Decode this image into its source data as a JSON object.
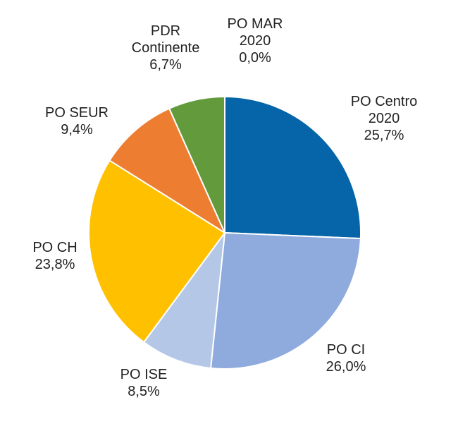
{
  "chart_data": {
    "type": "pie",
    "title": "",
    "slices": [
      {
        "name": "PO Centro 2020",
        "label_lines": [
          "PO Centro",
          "2020"
        ],
        "value": 25.7,
        "value_label": "25,7%",
        "color": "#0565A8"
      },
      {
        "name": "PO CI",
        "label_lines": [
          "PO CI"
        ],
        "value": 26.0,
        "value_label": "26,0%",
        "color": "#8FAADC"
      },
      {
        "name": "PO ISE",
        "label_lines": [
          "PO ISE"
        ],
        "value": 8.5,
        "value_label": "8,5%",
        "color": "#B4C7E7"
      },
      {
        "name": "PO CH",
        "label_lines": [
          "PO CH"
        ],
        "value": 23.8,
        "value_label": "23,8%",
        "color": "#FFC000"
      },
      {
        "name": "PO SEUR",
        "label_lines": [
          "PO SEUR"
        ],
        "value": 9.4,
        "value_label": "9,4%",
        "color": "#ED7D31"
      },
      {
        "name": "PDR Continente",
        "label_lines": [
          "PDR",
          "Continente"
        ],
        "value": 6.7,
        "value_label": "6,7%",
        "color": "#629A3C"
      },
      {
        "name": "PO MAR 2020",
        "label_lines": [
          "PO MAR",
          "2020"
        ],
        "value": 0.0,
        "value_label": "0,0%",
        "color": "#4472C4"
      }
    ],
    "start": "12 o'clock",
    "direction": "clockwise",
    "legend": "none",
    "labels": "outside, category name and percentage"
  }
}
